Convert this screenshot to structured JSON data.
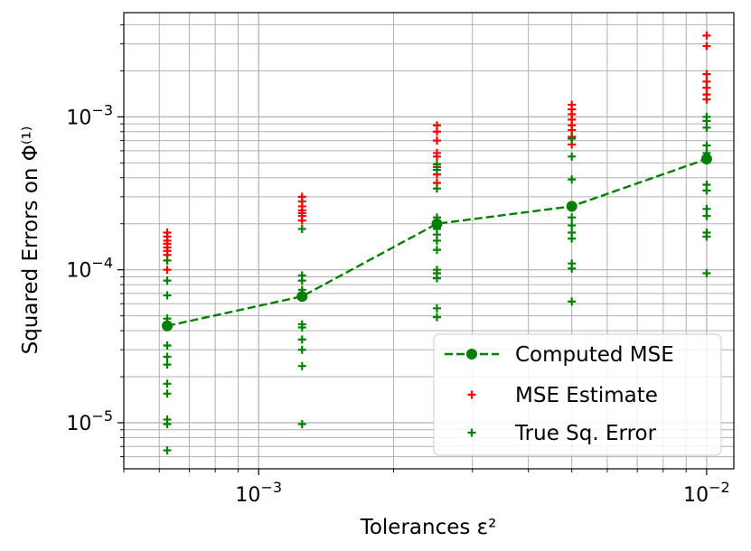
{
  "chart_data": {
    "type": "scatter",
    "xlabel": "Tolerances ε²",
    "ylabel": "Squared Errors on Φ⁽¹⁾",
    "xscale": "log",
    "yscale": "log",
    "xlim": [
      0.0005,
      0.0115
    ],
    "ylim": [
      5e-06,
      0.0048
    ],
    "grid": true,
    "legend_position": "lower-right",
    "x_ticks": [
      {
        "value": 0.001,
        "base": "10",
        "exp": "−3"
      },
      {
        "value": 0.01,
        "base": "10",
        "exp": "−2"
      }
    ],
    "y_ticks": [
      {
        "value": 1e-05,
        "base": "10",
        "exp": "−5"
      },
      {
        "value": 0.0001,
        "base": "10",
        "exp": "−4"
      },
      {
        "value": 0.001,
        "base": "10",
        "exp": "−3"
      }
    ],
    "x": [
      0.000625,
      0.00125,
      0.0025,
      0.005,
      0.01
    ],
    "series": [
      {
        "name": "Computed MSE",
        "kind": "line",
        "color": "#008000",
        "style": "dashed-with-circle-markers",
        "y": [
          4.3e-05,
          6.7e-05,
          0.0002,
          0.00026,
          0.00053
        ]
      },
      {
        "name": "MSE Estimate",
        "kind": "scatter",
        "color": "#ff0000",
        "marker": "plus",
        "points": [
          [
            0.000625,
            0.000175
          ],
          [
            0.000625,
            0.000165
          ],
          [
            0.000625,
            0.000155
          ],
          [
            0.000625,
            0.000148
          ],
          [
            0.000625,
            0.00014
          ],
          [
            0.000625,
            0.000133
          ],
          [
            0.000625,
            0.000125
          ],
          [
            0.000625,
            0.000115
          ],
          [
            0.000625,
            0.0001
          ],
          [
            0.00125,
            0.0003
          ],
          [
            0.00125,
            0.00028
          ],
          [
            0.00125,
            0.00026
          ],
          [
            0.00125,
            0.000245
          ],
          [
            0.00125,
            0.000235
          ],
          [
            0.00125,
            0.000225
          ],
          [
            0.00125,
            0.00021
          ],
          [
            0.0025,
            0.00088
          ],
          [
            0.0025,
            0.0008
          ],
          [
            0.0025,
            0.0007
          ],
          [
            0.0025,
            0.00058
          ],
          [
            0.0025,
            0.00055
          ],
          [
            0.0025,
            0.00047
          ],
          [
            0.0025,
            0.00042
          ],
          [
            0.0025,
            0.00037
          ],
          [
            0.005,
            0.0012
          ],
          [
            0.005,
            0.00112
          ],
          [
            0.005,
            0.00104
          ],
          [
            0.005,
            0.00096
          ],
          [
            0.005,
            0.00088
          ],
          [
            0.005,
            0.00082
          ],
          [
            0.005,
            0.00074
          ],
          [
            0.005,
            0.00066
          ],
          [
            0.01,
            0.0034
          ],
          [
            0.01,
            0.0029
          ],
          [
            0.01,
            0.0019
          ],
          [
            0.01,
            0.0017
          ],
          [
            0.01,
            0.00155
          ],
          [
            0.01,
            0.0014
          ],
          [
            0.01,
            0.0013
          ]
        ]
      },
      {
        "name": "True Sq. Error",
        "kind": "scatter",
        "color": "#008000",
        "marker": "plus",
        "points": [
          [
            0.000625,
            0.000115
          ],
          [
            0.000625,
            8.5e-05
          ],
          [
            0.000625,
            6.8e-05
          ],
          [
            0.000625,
            4.8e-05
          ],
          [
            0.000625,
            3.2e-05
          ],
          [
            0.000625,
            2.7e-05
          ],
          [
            0.000625,
            2.4e-05
          ],
          [
            0.000625,
            1.8e-05
          ],
          [
            0.000625,
            1.55e-05
          ],
          [
            0.000625,
            1.05e-05
          ],
          [
            0.000625,
            9.8e-06
          ],
          [
            0.000625,
            6.6e-06
          ],
          [
            0.00125,
            0.000185
          ],
          [
            0.00125,
            9.2e-05
          ],
          [
            0.00125,
            8.5e-05
          ],
          [
            0.00125,
            7.4e-05
          ],
          [
            0.00125,
            4.4e-05
          ],
          [
            0.00125,
            4.2e-05
          ],
          [
            0.00125,
            3.5e-05
          ],
          [
            0.00125,
            3e-05
          ],
          [
            0.00125,
            2.35e-05
          ],
          [
            0.00125,
            9.8e-06
          ],
          [
            0.0025,
            0.00049
          ],
          [
            0.0025,
            0.00045
          ],
          [
            0.0025,
            0.00034
          ],
          [
            0.0025,
            0.00022
          ],
          [
            0.0025,
            0.000185
          ],
          [
            0.0025,
            0.00017
          ],
          [
            0.0025,
            0.000155
          ],
          [
            0.0025,
            0.000135
          ],
          [
            0.0025,
            0.0001
          ],
          [
            0.0025,
            9.5e-05
          ],
          [
            0.0025,
            8.8e-05
          ],
          [
            0.0025,
            5.6e-05
          ],
          [
            0.0025,
            4.9e-05
          ],
          [
            0.005,
            0.00072
          ],
          [
            0.005,
            0.00055
          ],
          [
            0.005,
            0.00039
          ],
          [
            0.005,
            0.00022
          ],
          [
            0.005,
            0.000195
          ],
          [
            0.005,
            0.000175
          ],
          [
            0.005,
            0.00016
          ],
          [
            0.005,
            0.00011
          ],
          [
            0.005,
            0.000102
          ],
          [
            0.005,
            6.2e-05
          ],
          [
            0.01,
            0.001
          ],
          [
            0.01,
            0.00094
          ],
          [
            0.01,
            0.00085
          ],
          [
            0.01,
            0.00065
          ],
          [
            0.01,
            0.00058
          ],
          [
            0.01,
            0.00036
          ],
          [
            0.01,
            0.00033
          ],
          [
            0.01,
            0.00025
          ],
          [
            0.01,
            0.000225
          ],
          [
            0.01,
            0.000175
          ],
          [
            0.01,
            0.000165
          ],
          [
            0.01,
            9.5e-05
          ]
        ]
      }
    ]
  }
}
